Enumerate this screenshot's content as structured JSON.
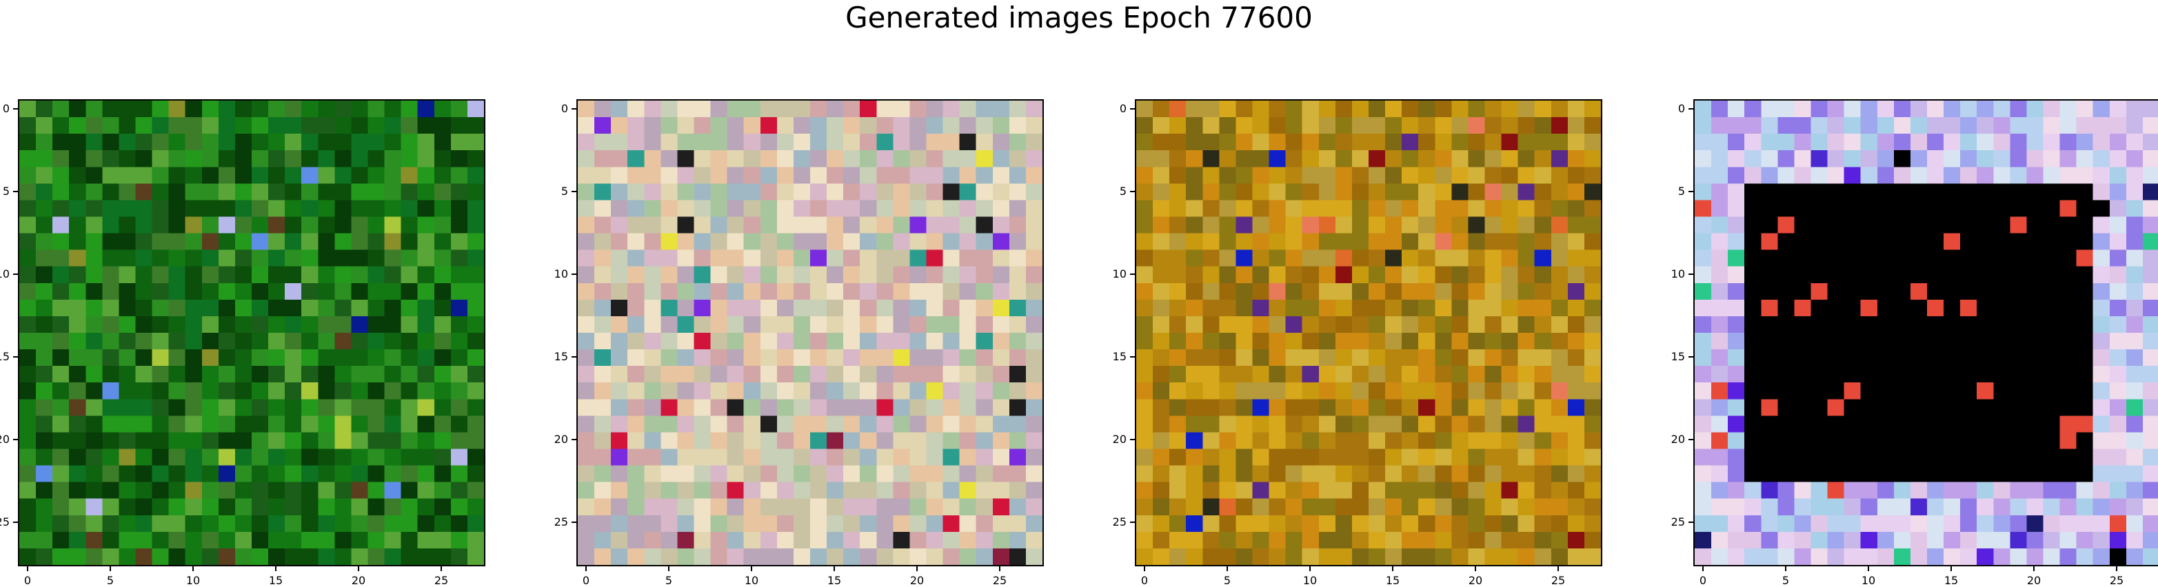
{
  "title": "Generated images Epoch 77600",
  "image_grid": {
    "rows": 28,
    "cols": 28
  },
  "axis_ticks": {
    "x": [
      "0",
      "5",
      "10",
      "15",
      "20",
      "25"
    ],
    "y": [
      "0",
      "5",
      "10",
      "15",
      "20",
      "25"
    ]
  },
  "panels": [
    {
      "name": "generated-image-1",
      "palette": [
        "#0b4f0b",
        "#137a13",
        "#0f6410",
        "#239a1c",
        "#073b07",
        "#2b8f22",
        "#5aa538",
        "#1b5e1a",
        "#3d7d2a",
        "#0d7222"
      ],
      "accents": [
        "#5f8ee8",
        "#081a8f",
        "#a9c83a",
        "#b5b8e8",
        "#8a8f2a",
        "#5a3e1e"
      ]
    },
    {
      "name": "generated-image-2",
      "palette": [
        "#c9c3a3",
        "#d7b7c8",
        "#a7c69e",
        "#e2d6b0",
        "#b9a6b9",
        "#c8d0b8",
        "#e8c4a0",
        "#d2a6a6",
        "#9fb8c4",
        "#f0e2c6"
      ],
      "accents": [
        "#8b1e3f",
        "#e8e23a",
        "#2a9d8f",
        "#1e1e1e",
        "#d2143a",
        "#7a2be0"
      ]
    },
    {
      "name": "generated-image-3",
      "palette": [
        "#c79a10",
        "#a8740d",
        "#d7a81c",
        "#8e7a12",
        "#b7860f",
        "#cf8a12",
        "#9c6a08",
        "#b79a3a",
        "#d2b23a",
        "#7f6a14"
      ],
      "accents": [
        "#1020c8",
        "#8a1010",
        "#e06a2a",
        "#5a2a8a",
        "#2a2a1a",
        "#e87a5a"
      ]
    },
    {
      "name": "generated-image-4",
      "palette": [
        "#c8b8ea",
        "#b9d2f0",
        "#e2c6e8",
        "#9fa8ee",
        "#d8e4f2",
        "#c0a0e8",
        "#e8d0f0",
        "#a8d0e8",
        "#8f7ae8",
        "#f0dcea"
      ],
      "accents": [
        "#000000",
        "#e84a3a",
        "#4a2ad0",
        "#2ac88a",
        "#5a20e0",
        "#1a1a6a"
      ],
      "dark_square": {
        "from": 5,
        "to": 23
      }
    }
  ]
}
